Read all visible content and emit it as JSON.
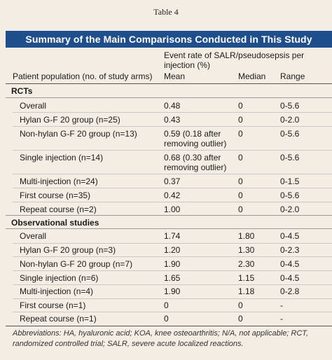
{
  "table_label": "Table 4",
  "title": "Summary of the Main Comparisons Conducted in This Study",
  "header": {
    "event_rate": "Event rate of SALR/pseudosepsis per injection (%)",
    "event_rate_line1": "Event rate of SALR/pseudosepsis per",
    "event_rate_line2": "injection (%)",
    "population": "Patient population (no. of study arms)",
    "mean": "Mean",
    "median": "Median",
    "range": "Range"
  },
  "sections": [
    {
      "name": "RCTs",
      "rows": [
        {
          "population": "Overall",
          "mean": "0.48",
          "median": "0",
          "range": "0-5.6"
        },
        {
          "population": "Hylan G-F 20 group (n=25)",
          "mean": "0.43",
          "median": "0",
          "range": "0-2.0"
        },
        {
          "population": "Non-hylan G-F 20 group (n=13)",
          "mean": "0.59 (0.18 after",
          "mean2": "removing outlier)",
          "median": "0",
          "range": "0-5.6"
        },
        {
          "population": "Single injection (n=14)",
          "mean": "0.68 (0.30 after",
          "mean2": "removing outlier)",
          "median": "0",
          "range": "0-5.6"
        },
        {
          "population": "Multi-injection (n=24)",
          "mean": "0.37",
          "median": "0",
          "range": "0-1.5"
        },
        {
          "population": "First course (n=35)",
          "mean": "0.42",
          "median": "0",
          "range": "0-5.6"
        },
        {
          "population": "Repeat course (n=2)",
          "mean": "1.00",
          "median": "0",
          "range": "0-2.0"
        }
      ]
    },
    {
      "name": "Observational studies",
      "rows": [
        {
          "population": "Overall",
          "mean": "1.74",
          "median": "1.80",
          "range": "0-4.5"
        },
        {
          "population": "Hylan G-F 20 group (n=3)",
          "mean": "1.20",
          "median": "1.30",
          "range": "0-2.3"
        },
        {
          "population": "Non-hylan G-F 20 group (n=7)",
          "mean": "1.90",
          "median": "2.30",
          "range": "0-4.5"
        },
        {
          "population": "Single injection (n=6)",
          "mean": "1.65",
          "median": "1.15",
          "range": "0-4.5"
        },
        {
          "population": "Multi-injection (n=4)",
          "mean": "1.90",
          "median": "1.18",
          "range": "0-2.8"
        },
        {
          "population": "First course (n=1)",
          "mean": "0",
          "median": "0",
          "range": "-"
        },
        {
          "population": "Repeat course (n=1)",
          "mean": "0",
          "median": "0",
          "range": "-"
        }
      ]
    }
  ],
  "footnote": "Abbreviations: HA, hyaluronic acid; KOA, knee osteoarthritis; N/A, not applicable; RCT, randomized controlled trial; SALR, severe acute localized reactions."
}
